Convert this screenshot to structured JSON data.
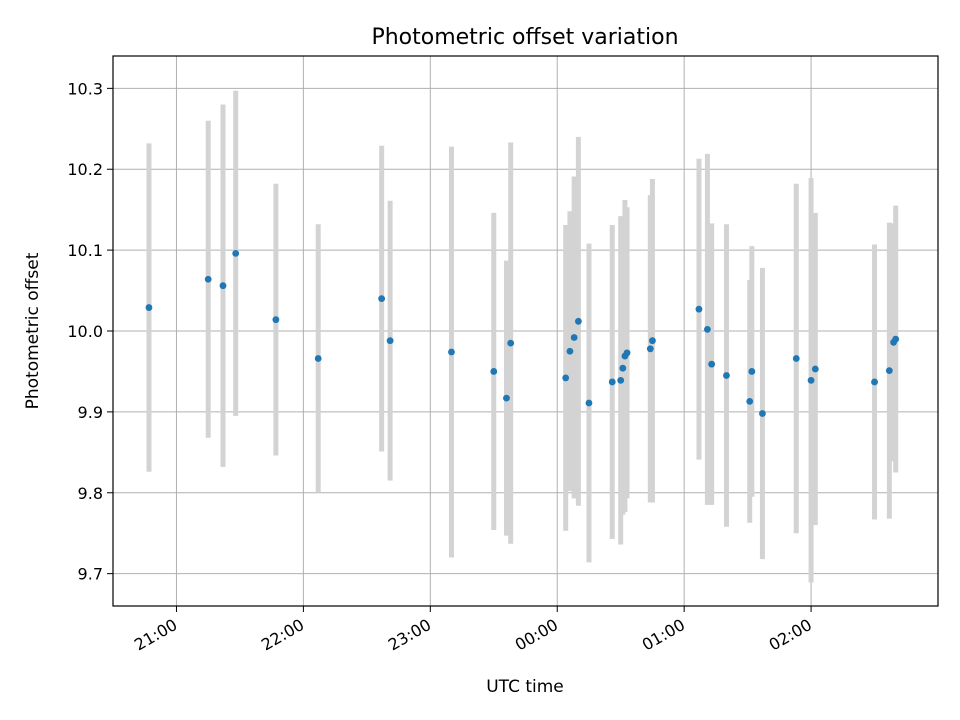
{
  "chart_data": {
    "type": "scatter",
    "title": "Photometric offset variation",
    "xlabel": "UTC time",
    "ylabel": "Photometric offset",
    "x_ticks": [
      "21:00",
      "22:00",
      "23:00",
      "00:00",
      "01:00",
      "02:00"
    ],
    "y_ticks": [
      "9.7",
      "9.8",
      "9.9",
      "10.0",
      "10.1",
      "10.2",
      "10.3"
    ],
    "xlim": [
      "20:30",
      "03:00"
    ],
    "ylim": [
      9.66,
      10.34
    ],
    "grid": true,
    "colors": {
      "point": "#1f77b4",
      "errorbar": "#d3d3d3",
      "grid": "#b0b0b0"
    },
    "points": [
      {
        "t": "20:47",
        "y": 10.029,
        "err": 0.203
      },
      {
        "t": "21:15",
        "y": 10.064,
        "err": 0.196
      },
      {
        "t": "21:22",
        "y": 10.056,
        "err": 0.224
      },
      {
        "t": "21:28",
        "y": 10.096,
        "err": 0.201
      },
      {
        "t": "21:47",
        "y": 10.014,
        "err": 0.168
      },
      {
        "t": "22:07",
        "y": 9.966,
        "err": 0.166
      },
      {
        "t": "22:37",
        "y": 10.04,
        "err": 0.189
      },
      {
        "t": "22:41",
        "y": 9.988,
        "err": 0.173
      },
      {
        "t": "23:10",
        "y": 9.974,
        "err": 0.254
      },
      {
        "t": "23:30",
        "y": 9.95,
        "err": 0.196
      },
      {
        "t": "23:36",
        "y": 9.917,
        "err": 0.17
      },
      {
        "t": "23:38",
        "y": 9.985,
        "err": 0.248
      },
      {
        "t": "00:04",
        "y": 9.942,
        "err": 0.189
      },
      {
        "t": "00:06",
        "y": 9.975,
        "err": 0.173
      },
      {
        "t": "00:08",
        "y": 9.992,
        "err": 0.199
      },
      {
        "t": "00:10",
        "y": 10.012,
        "err": 0.228
      },
      {
        "t": "00:15",
        "y": 9.911,
        "err": 0.197
      },
      {
        "t": "00:26",
        "y": 9.937,
        "err": 0.194
      },
      {
        "t": "00:30",
        "y": 9.939,
        "err": 0.203
      },
      {
        "t": "00:31",
        "y": 9.954,
        "err": 0.181
      },
      {
        "t": "00:32",
        "y": 9.969,
        "err": 0.193
      },
      {
        "t": "00:33",
        "y": 9.973,
        "err": 0.18
      },
      {
        "t": "00:44",
        "y": 9.978,
        "err": 0.19
      },
      {
        "t": "00:45",
        "y": 9.988,
        "err": 0.2
      },
      {
        "t": "01:07",
        "y": 10.027,
        "err": 0.186
      },
      {
        "t": "01:11",
        "y": 10.002,
        "err": 0.217
      },
      {
        "t": "01:13",
        "y": 9.959,
        "err": 0.174
      },
      {
        "t": "01:20",
        "y": 9.945,
        "err": 0.187
      },
      {
        "t": "01:31",
        "y": 9.913,
        "err": 0.15
      },
      {
        "t": "01:32",
        "y": 9.95,
        "err": 0.155
      },
      {
        "t": "01:37",
        "y": 9.898,
        "err": 0.18
      },
      {
        "t": "01:53",
        "y": 9.966,
        "err": 0.216
      },
      {
        "t": "02:00",
        "y": 9.939,
        "err": 0.25
      },
      {
        "t": "02:02",
        "y": 9.953,
        "err": 0.193
      },
      {
        "t": "02:30",
        "y": 9.937,
        "err": 0.17
      },
      {
        "t": "02:37",
        "y": 9.951,
        "err": 0.183
      },
      {
        "t": "02:39",
        "y": 9.986,
        "err": 0.147
      },
      {
        "t": "02:40",
        "y": 9.99,
        "err": 0.165
      }
    ]
  }
}
